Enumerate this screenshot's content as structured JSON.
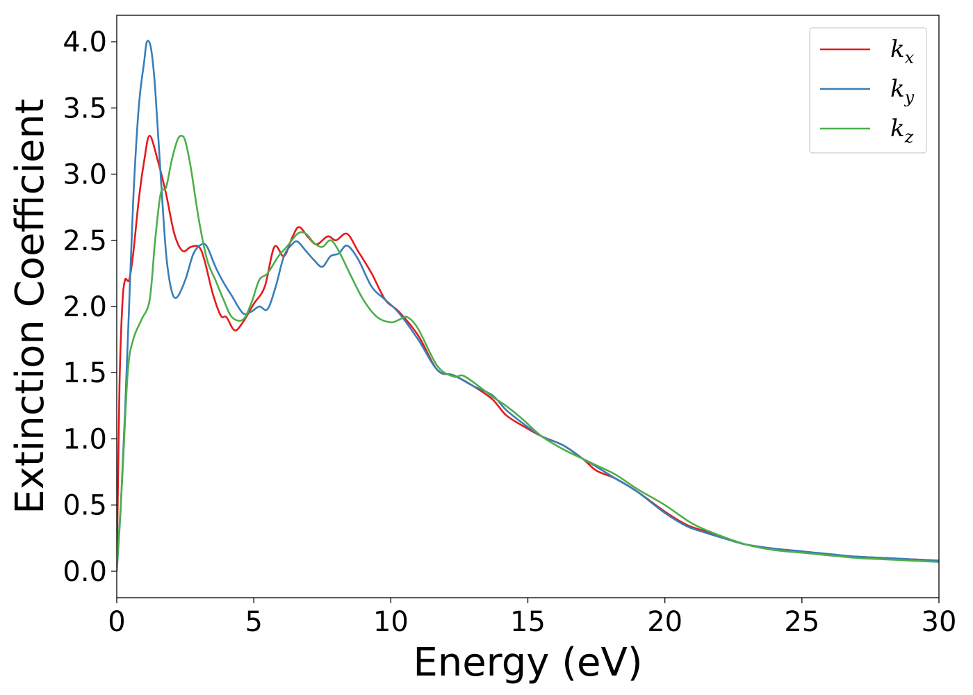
{
  "chart_data": {
    "type": "line",
    "title": "",
    "xlabel": "Energy (eV)",
    "ylabel": "Extinction Coefficient",
    "xlim": [
      0,
      30
    ],
    "ylim": [
      -0.2,
      4.2
    ],
    "xticks": [
      0,
      5,
      10,
      15,
      20,
      25,
      30
    ],
    "yticks": [
      0.0,
      0.5,
      1.0,
      1.5,
      2.0,
      2.5,
      3.0,
      3.5,
      4.0
    ],
    "xtick_labels": [
      "0",
      "5",
      "10",
      "15",
      "20",
      "25",
      "30"
    ],
    "ytick_labels": [
      "0.0",
      "0.5",
      "1.0",
      "1.5",
      "2.0",
      "2.5",
      "3.0",
      "3.5",
      "4.0"
    ],
    "grid": false,
    "legend_position": "top-right",
    "series": [
      {
        "name": "k",
        "sub": "x",
        "color": "#e41a1c",
        "x": [
          0,
          0.1,
          0.2,
          0.3,
          0.45,
          0.6,
          0.8,
          1.0,
          1.2,
          1.5,
          1.8,
          2.1,
          2.4,
          2.7,
          3.0,
          3.2,
          3.5,
          3.8,
          4.0,
          4.3,
          4.6,
          5.0,
          5.4,
          5.75,
          6.1,
          6.4,
          6.65,
          7.0,
          7.3,
          7.7,
          8.0,
          8.4,
          8.8,
          9.3,
          9.8,
          10.3,
          11.0,
          11.7,
          12.3,
          13.0,
          13.7,
          14.2,
          14.8,
          15.5,
          16.3,
          17.0,
          17.5,
          18.2,
          19.0,
          20.0,
          20.8,
          21.5,
          22.3,
          23.0,
          24.0,
          25.0,
          26.0,
          27.0,
          28.0,
          29.0,
          30.0
        ],
        "y": [
          0.0,
          1.4,
          2.0,
          2.2,
          2.2,
          2.4,
          2.8,
          3.1,
          3.29,
          3.1,
          2.85,
          2.55,
          2.42,
          2.45,
          2.45,
          2.35,
          2.1,
          1.93,
          1.92,
          1.82,
          1.88,
          2.02,
          2.15,
          2.45,
          2.38,
          2.52,
          2.6,
          2.52,
          2.47,
          2.53,
          2.5,
          2.55,
          2.42,
          2.25,
          2.05,
          1.96,
          1.78,
          1.52,
          1.48,
          1.4,
          1.3,
          1.18,
          1.1,
          1.02,
          0.95,
          0.85,
          0.76,
          0.7,
          0.6,
          0.45,
          0.35,
          0.3,
          0.24,
          0.2,
          0.17,
          0.15,
          0.12,
          0.11,
          0.1,
          0.09,
          0.08
        ]
      },
      {
        "name": "k",
        "sub": "y",
        "color": "#377eb8",
        "x": [
          0,
          0.15,
          0.3,
          0.45,
          0.6,
          0.8,
          1.0,
          1.1,
          1.25,
          1.4,
          1.6,
          1.8,
          2.0,
          2.2,
          2.5,
          2.8,
          3.1,
          3.3,
          3.6,
          3.9,
          4.2,
          4.6,
          4.9,
          5.2,
          5.5,
          5.8,
          6.1,
          6.4,
          6.6,
          6.9,
          7.2,
          7.5,
          7.8,
          8.1,
          8.4,
          8.8,
          9.3,
          9.8,
          10.3,
          11.0,
          11.7,
          12.3,
          13.0,
          13.7,
          14.2,
          14.8,
          15.5,
          16.3,
          17.0,
          17.5,
          18.2,
          19.0,
          20.0,
          20.8,
          21.5,
          22.3,
          23.0,
          24.0,
          25.0,
          26.0,
          27.0,
          28.0,
          29.0,
          30.0
        ],
        "y": [
          0.0,
          0.5,
          1.2,
          2.0,
          2.8,
          3.5,
          3.85,
          4.0,
          3.95,
          3.65,
          3.0,
          2.4,
          2.12,
          2.07,
          2.2,
          2.4,
          2.47,
          2.45,
          2.3,
          2.18,
          2.08,
          1.95,
          1.96,
          2.0,
          1.98,
          2.15,
          2.38,
          2.47,
          2.49,
          2.42,
          2.35,
          2.3,
          2.38,
          2.4,
          2.46,
          2.36,
          2.15,
          2.05,
          1.95,
          1.75,
          1.52,
          1.48,
          1.4,
          1.33,
          1.22,
          1.12,
          1.02,
          0.95,
          0.85,
          0.79,
          0.7,
          0.6,
          0.44,
          0.34,
          0.29,
          0.24,
          0.2,
          0.17,
          0.15,
          0.13,
          0.11,
          0.1,
          0.09,
          0.08
        ]
      },
      {
        "name": "k",
        "sub": "z",
        "color": "#4daf4a",
        "x": [
          0,
          0.2,
          0.4,
          0.6,
          0.9,
          1.2,
          1.4,
          1.6,
          1.8,
          2.0,
          2.2,
          2.35,
          2.5,
          2.7,
          3.0,
          3.3,
          3.6,
          3.9,
          4.2,
          4.6,
          4.9,
          5.2,
          5.5,
          5.9,
          6.2,
          6.6,
          6.9,
          7.2,
          7.5,
          7.8,
          8.1,
          8.5,
          9.0,
          9.5,
          10.0,
          10.3,
          10.6,
          11.0,
          11.7,
          12.3,
          12.6,
          13.0,
          13.7,
          14.2,
          14.8,
          15.5,
          16.3,
          17.0,
          17.5,
          18.2,
          19.0,
          20.0,
          21.0,
          22.0,
          23.0,
          24.0,
          25.0,
          26.0,
          27.0,
          28.0,
          29.0,
          30.0
        ],
        "y": [
          0.0,
          0.7,
          1.5,
          1.75,
          1.9,
          2.05,
          2.5,
          2.85,
          2.9,
          3.1,
          3.25,
          3.29,
          3.25,
          3.05,
          2.65,
          2.35,
          2.2,
          2.05,
          1.92,
          1.9,
          2.02,
          2.2,
          2.25,
          2.38,
          2.45,
          2.55,
          2.55,
          2.48,
          2.45,
          2.5,
          2.42,
          2.25,
          2.05,
          1.92,
          1.88,
          1.9,
          1.92,
          1.83,
          1.55,
          1.47,
          1.48,
          1.43,
          1.32,
          1.25,
          1.15,
          1.02,
          0.92,
          0.85,
          0.8,
          0.73,
          0.62,
          0.5,
          0.36,
          0.27,
          0.2,
          0.16,
          0.14,
          0.12,
          0.1,
          0.09,
          0.08,
          0.07
        ]
      }
    ]
  }
}
